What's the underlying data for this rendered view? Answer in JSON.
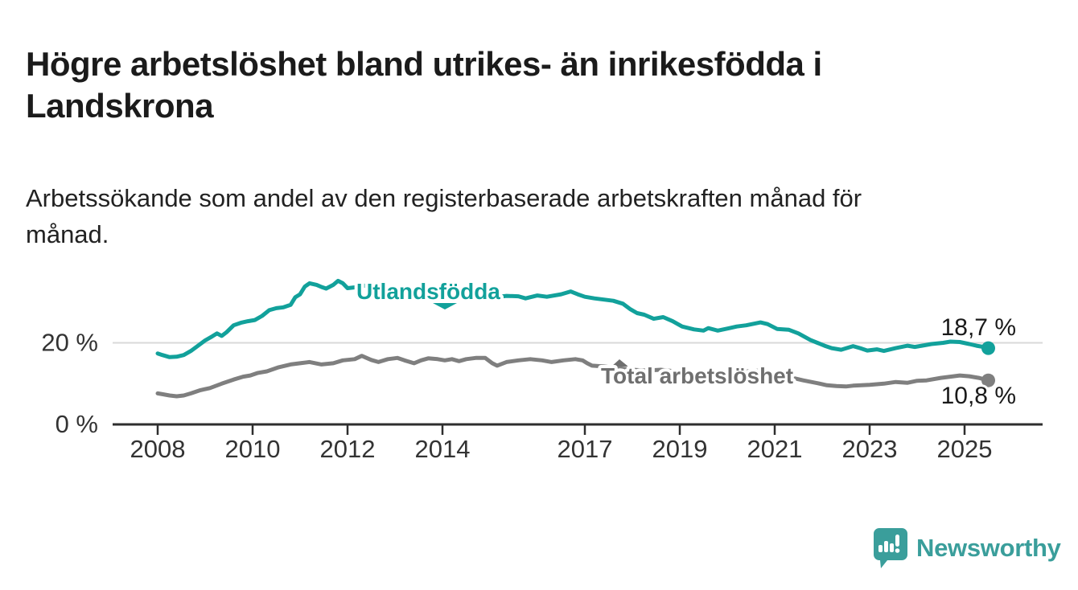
{
  "header": {
    "title": "Högre arbetslöshet bland utrikes- än inrikesfödda i\nLandskrona",
    "subtitle": "Arbetssökande som andel av den registerbaserade arbetskraften månad för\nmånad."
  },
  "chart_data": {
    "type": "line",
    "title": "Högre arbetslöshet bland utrikes- än inrikesfödda i Landskrona",
    "subtitle": "Arbetssökande som andel av den registerbaserade arbetskraften månad för månad.",
    "unit": "%",
    "x_range": [
      2007.6,
      2026.6
    ],
    "y_range": [
      0,
      38
    ],
    "grid": "single-line-at-20",
    "x_ticks": [
      2008,
      2010,
      2012,
      2014,
      2017,
      2019,
      2021,
      2023,
      2025
    ],
    "x_tick_labels": [
      "2008",
      "2010",
      "2012",
      "2014",
      "2017",
      "2019",
      "2021",
      "2023",
      "2025"
    ],
    "y_axis_labels": [
      {
        "value": 20,
        "label": "20 %"
      },
      {
        "value": 0,
        "label": "0 %"
      }
    ],
    "series": [
      {
        "name": "Utlandsfödda",
        "color": "#12a19b",
        "end_value_label": "18,7 %",
        "end_value": 18.7,
        "label_marker": "down",
        "points": [
          [
            2008,
            17.4
          ],
          [
            2008.1,
            17.0
          ],
          [
            2008.25,
            16.5
          ],
          [
            2008.4,
            16.6
          ],
          [
            2008.55,
            17.0
          ],
          [
            2008.7,
            18.0
          ],
          [
            2008.85,
            19.3
          ],
          [
            2009,
            20.6
          ],
          [
            2009.15,
            21.6
          ],
          [
            2009.25,
            22.3
          ],
          [
            2009.35,
            21.7
          ],
          [
            2009.45,
            22.6
          ],
          [
            2009.6,
            24.3
          ],
          [
            2009.75,
            24.9
          ],
          [
            2009.9,
            25.3
          ],
          [
            2010.05,
            25.6
          ],
          [
            2010.2,
            26.6
          ],
          [
            2010.35,
            28.0
          ],
          [
            2010.5,
            28.5
          ],
          [
            2010.65,
            28.7
          ],
          [
            2010.8,
            29.3
          ],
          [
            2010.9,
            31.2
          ],
          [
            2011,
            31.9
          ],
          [
            2011.1,
            33.8
          ],
          [
            2011.2,
            34.6
          ],
          [
            2011.35,
            34.2
          ],
          [
            2011.45,
            33.7
          ],
          [
            2011.55,
            33.3
          ],
          [
            2011.7,
            34.2
          ],
          [
            2011.8,
            35.2
          ],
          [
            2011.9,
            34.6
          ],
          [
            2012,
            33.4
          ],
          [
            2012.15,
            33.6
          ],
          [
            2012.35,
            34.0
          ],
          [
            2012.55,
            33.8
          ],
          [
            2012.75,
            33.3
          ],
          [
            2013,
            33.0
          ],
          [
            2013.3,
            32.4
          ],
          [
            2013.6,
            31.8
          ],
          [
            2013.9,
            31.5
          ],
          [
            2014.2,
            31.8
          ],
          [
            2014.5,
            32.0
          ],
          [
            2014.8,
            31.6
          ],
          [
            2015.1,
            31.2
          ],
          [
            2015.35,
            31.5
          ],
          [
            2015.6,
            31.4
          ],
          [
            2015.75,
            30.9
          ],
          [
            2016,
            31.6
          ],
          [
            2016.2,
            31.3
          ],
          [
            2016.5,
            31.9
          ],
          [
            2016.7,
            32.6
          ],
          [
            2016.85,
            31.9
          ],
          [
            2017,
            31.3
          ],
          [
            2017.2,
            30.9
          ],
          [
            2017.4,
            30.6
          ],
          [
            2017.6,
            30.3
          ],
          [
            2017.8,
            29.6
          ],
          [
            2017.95,
            28.3
          ],
          [
            2018.1,
            27.3
          ],
          [
            2018.25,
            26.9
          ],
          [
            2018.45,
            25.9
          ],
          [
            2018.65,
            26.3
          ],
          [
            2018.85,
            25.3
          ],
          [
            2019.05,
            24.0
          ],
          [
            2019.3,
            23.3
          ],
          [
            2019.5,
            23.0
          ],
          [
            2019.6,
            23.6
          ],
          [
            2019.8,
            23.0
          ],
          [
            2020.05,
            23.6
          ],
          [
            2020.2,
            24.0
          ],
          [
            2020.4,
            24.3
          ],
          [
            2020.7,
            25.0
          ],
          [
            2020.85,
            24.6
          ],
          [
            2021.05,
            23.4
          ],
          [
            2021.3,
            23.2
          ],
          [
            2021.5,
            22.3
          ],
          [
            2021.75,
            20.7
          ],
          [
            2021.9,
            20.0
          ],
          [
            2022.05,
            19.3
          ],
          [
            2022.2,
            18.7
          ],
          [
            2022.4,
            18.3
          ],
          [
            2022.65,
            19.2
          ],
          [
            2022.8,
            18.7
          ],
          [
            2022.95,
            18.1
          ],
          [
            2023.15,
            18.4
          ],
          [
            2023.3,
            18.0
          ],
          [
            2023.55,
            18.7
          ],
          [
            2023.8,
            19.3
          ],
          [
            2023.95,
            19.0
          ],
          [
            2024.1,
            19.3
          ],
          [
            2024.3,
            19.7
          ],
          [
            2024.55,
            20.0
          ],
          [
            2024.7,
            20.3
          ],
          [
            2024.9,
            20.2
          ],
          [
            2025.1,
            19.7
          ],
          [
            2025.25,
            19.3
          ],
          [
            2025.4,
            19.0
          ],
          [
            2025.5,
            18.7
          ]
        ]
      },
      {
        "name": "Total arbetslöshet",
        "color": "#7f7f7f",
        "end_value_label": "10,8 %",
        "end_value": 10.8,
        "label_marker": "up",
        "points": [
          [
            2008,
            7.6
          ],
          [
            2008.1,
            7.4
          ],
          [
            2008.25,
            7.1
          ],
          [
            2008.4,
            6.9
          ],
          [
            2008.55,
            7.1
          ],
          [
            2008.7,
            7.6
          ],
          [
            2008.9,
            8.4
          ],
          [
            2009.1,
            8.9
          ],
          [
            2009.35,
            10.0
          ],
          [
            2009.6,
            11.0
          ],
          [
            2009.8,
            11.7
          ],
          [
            2009.95,
            12.0
          ],
          [
            2010.1,
            12.6
          ],
          [
            2010.3,
            13.0
          ],
          [
            2010.55,
            14.0
          ],
          [
            2010.8,
            14.7
          ],
          [
            2011,
            15.0
          ],
          [
            2011.2,
            15.3
          ],
          [
            2011.45,
            14.7
          ],
          [
            2011.7,
            15.0
          ],
          [
            2011.9,
            15.7
          ],
          [
            2012.15,
            16.0
          ],
          [
            2012.3,
            16.8
          ],
          [
            2012.5,
            15.8
          ],
          [
            2012.65,
            15.3
          ],
          [
            2012.85,
            16.0
          ],
          [
            2013.05,
            16.3
          ],
          [
            2013.2,
            15.7
          ],
          [
            2013.4,
            15.0
          ],
          [
            2013.55,
            15.7
          ],
          [
            2013.7,
            16.2
          ],
          [
            2013.9,
            16.0
          ],
          [
            2014.05,
            15.7
          ],
          [
            2014.2,
            16.0
          ],
          [
            2014.35,
            15.5
          ],
          [
            2014.5,
            16.0
          ],
          [
            2014.7,
            16.3
          ],
          [
            2014.9,
            16.3
          ],
          [
            2015.05,
            15.0
          ],
          [
            2015.15,
            14.4
          ],
          [
            2015.35,
            15.3
          ],
          [
            2015.6,
            15.7
          ],
          [
            2015.85,
            16.0
          ],
          [
            2016.1,
            15.7
          ],
          [
            2016.3,
            15.3
          ],
          [
            2016.55,
            15.7
          ],
          [
            2016.8,
            16.0
          ],
          [
            2016.95,
            15.7
          ],
          [
            2017.05,
            15.0
          ],
          [
            2017.15,
            14.4
          ],
          [
            2017.4,
            14.2
          ],
          [
            2017.7,
            13.8
          ],
          [
            2018,
            13.4
          ],
          [
            2018.3,
            13.2
          ],
          [
            2018.6,
            13.4
          ],
          [
            2018.9,
            13.0
          ],
          [
            2019.2,
            12.6
          ],
          [
            2019.5,
            12.2
          ],
          [
            2019.8,
            12.1
          ],
          [
            2020.1,
            12.4
          ],
          [
            2020.4,
            13.0
          ],
          [
            2020.7,
            13.2
          ],
          [
            2021,
            12.4
          ],
          [
            2021.3,
            11.6
          ],
          [
            2021.6,
            10.8
          ],
          [
            2021.95,
            10.0
          ],
          [
            2022.1,
            9.6
          ],
          [
            2022.3,
            9.4
          ],
          [
            2022.5,
            9.3
          ],
          [
            2022.65,
            9.5
          ],
          [
            2023,
            9.7
          ],
          [
            2023.3,
            10.0
          ],
          [
            2023.55,
            10.4
          ],
          [
            2023.8,
            10.2
          ],
          [
            2024,
            10.7
          ],
          [
            2024.2,
            10.8
          ],
          [
            2024.5,
            11.4
          ],
          [
            2024.7,
            11.7
          ],
          [
            2024.9,
            12.0
          ],
          [
            2025.1,
            11.8
          ],
          [
            2025.3,
            11.4
          ],
          [
            2025.4,
            11.1
          ],
          [
            2025.5,
            10.8
          ]
        ]
      }
    ],
    "legend_position": "labels-on-lines"
  },
  "branding": {
    "logo_text": "Newsworthy",
    "logo_color": "#3a9e9b"
  },
  "colors": {
    "title": "#1b1b1b",
    "axis": "#2e2e2e",
    "tick_label": "#333333",
    "gridline": "#d9d9d9",
    "value_label": "#1a1a1a",
    "series_teal": "#12a19b",
    "series_gray": "#7f7f7f",
    "gray_label": "#6f6f6f"
  }
}
